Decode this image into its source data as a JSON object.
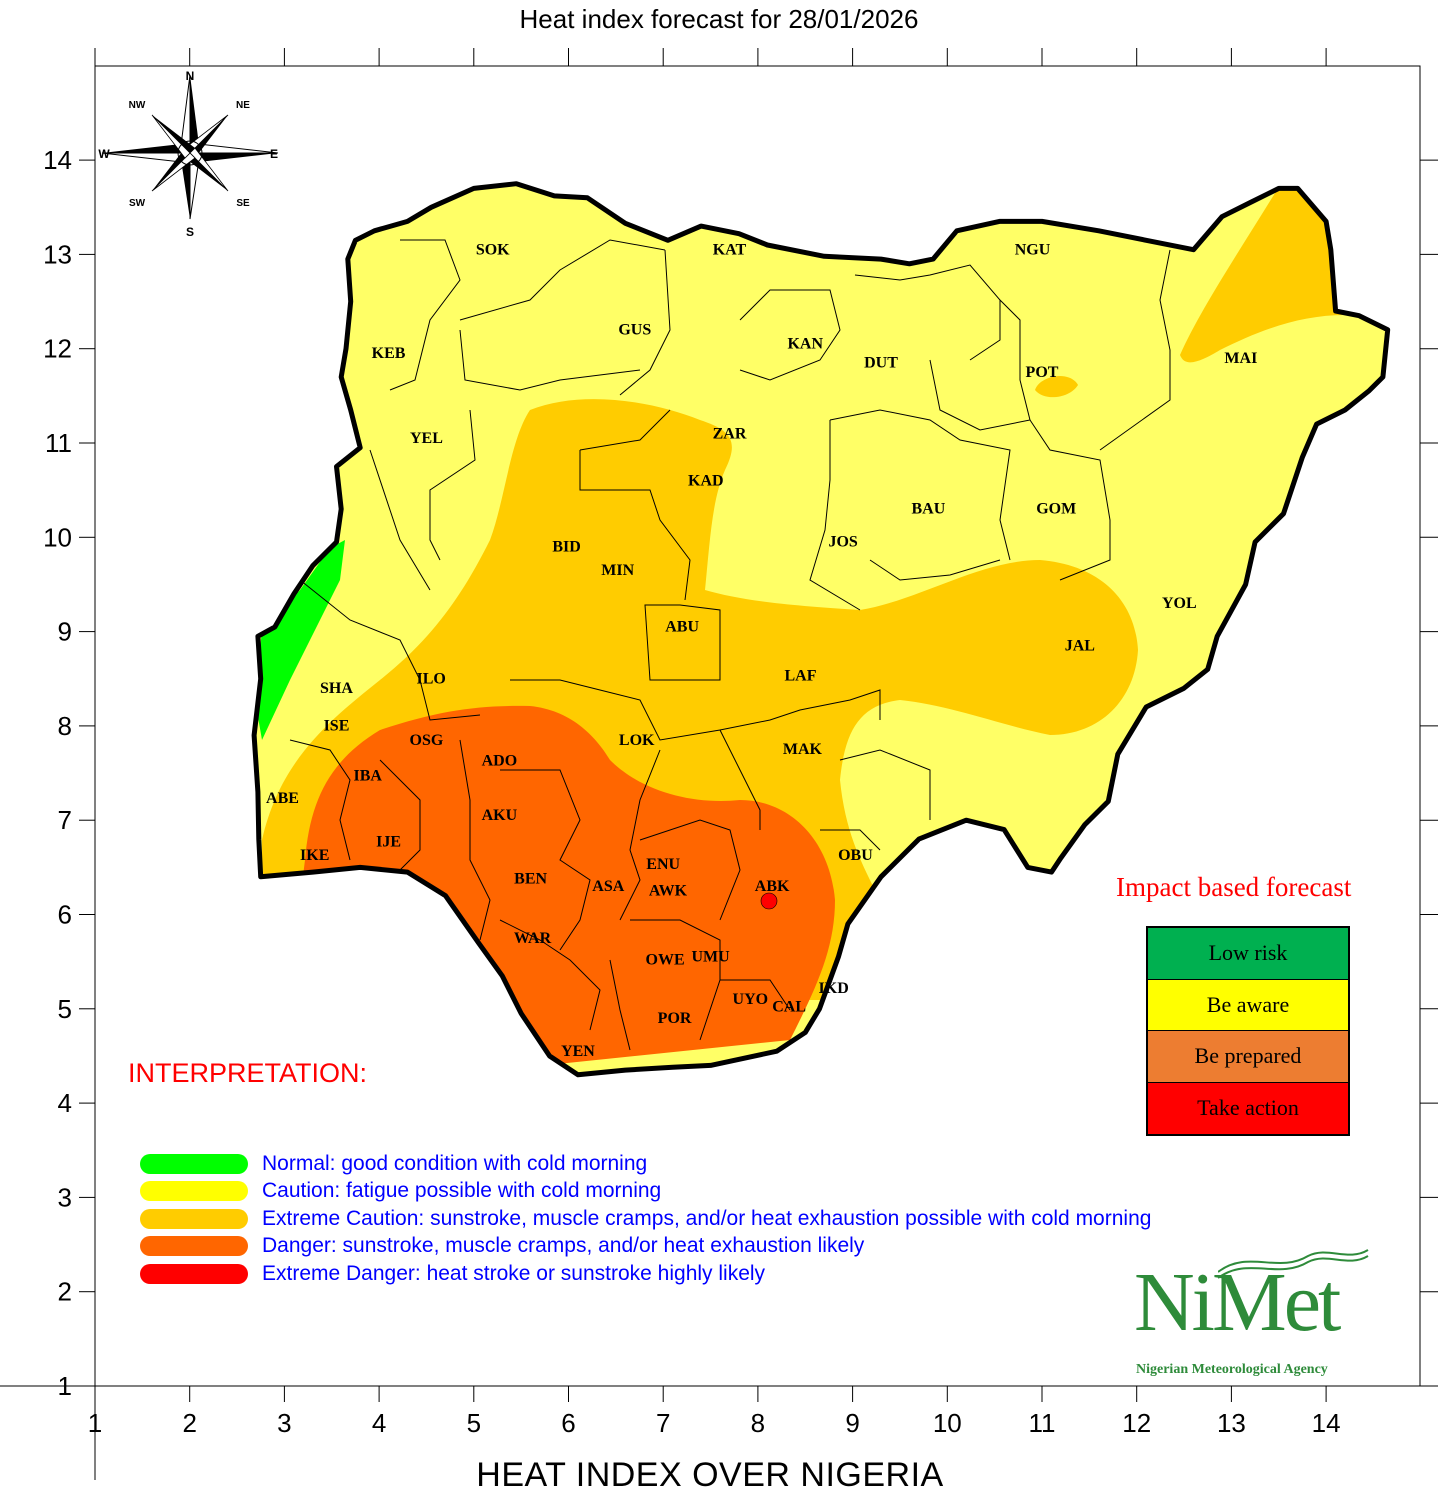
{
  "title": "Heat index forecast for 28/01/2026",
  "axis_title": "HEAT INDEX OVER NIGERIA",
  "axes": {
    "x_ticks": [
      "1",
      "2",
      "3",
      "4",
      "5",
      "6",
      "7",
      "8",
      "9",
      "10",
      "11",
      "12",
      "13",
      "14"
    ],
    "y_ticks": [
      "1",
      "2",
      "3",
      "4",
      "5",
      "6",
      "7",
      "8",
      "9",
      "10",
      "11",
      "12",
      "13",
      "14"
    ],
    "xlim": [
      1,
      15
    ],
    "ylim": [
      1,
      15
    ]
  },
  "compass": {
    "labels": [
      "N",
      "NE",
      "E",
      "SE",
      "S",
      "SW",
      "W",
      "NW"
    ]
  },
  "map_labels": [
    {
      "code": "SOK",
      "lon": 5.2,
      "lat": 13.0
    },
    {
      "code": "KAT",
      "lon": 7.7,
      "lat": 13.0
    },
    {
      "code": "NGU",
      "lon": 10.9,
      "lat": 13.0
    },
    {
      "code": "KEB",
      "lon": 4.1,
      "lat": 11.9
    },
    {
      "code": "GUS",
      "lon": 6.7,
      "lat": 12.15
    },
    {
      "code": "KAN",
      "lon": 8.5,
      "lat": 12.0
    },
    {
      "code": "DUT",
      "lon": 9.3,
      "lat": 11.8
    },
    {
      "code": "POT",
      "lon": 11.0,
      "lat": 11.7
    },
    {
      "code": "MAI",
      "lon": 13.1,
      "lat": 11.85
    },
    {
      "code": "YEL",
      "lon": 4.5,
      "lat": 11.0
    },
    {
      "code": "ZAR",
      "lon": 7.7,
      "lat": 11.05
    },
    {
      "code": "KAD",
      "lon": 7.45,
      "lat": 10.55
    },
    {
      "code": "BAU",
      "lon": 9.8,
      "lat": 10.25
    },
    {
      "code": "GOM",
      "lon": 11.15,
      "lat": 10.25
    },
    {
      "code": "BID",
      "lon": 5.98,
      "lat": 9.85
    },
    {
      "code": "JOS",
      "lon": 8.9,
      "lat": 9.9
    },
    {
      "code": "MIN",
      "lon": 6.52,
      "lat": 9.6
    },
    {
      "code": "YOL",
      "lon": 12.45,
      "lat": 9.25
    },
    {
      "code": "ABU",
      "lon": 7.2,
      "lat": 9.0
    },
    {
      "code": "JAL",
      "lon": 11.4,
      "lat": 8.8
    },
    {
      "code": "SHA",
      "lon": 3.55,
      "lat": 8.35
    },
    {
      "code": "ILO",
      "lon": 4.55,
      "lat": 8.45
    },
    {
      "code": "LAF",
      "lon": 8.45,
      "lat": 8.48
    },
    {
      "code": "ISE",
      "lon": 3.55,
      "lat": 7.95
    },
    {
      "code": "OSG",
      "lon": 4.5,
      "lat": 7.8
    },
    {
      "code": "LOK",
      "lon": 6.72,
      "lat": 7.8
    },
    {
      "code": "MAK",
      "lon": 8.47,
      "lat": 7.7
    },
    {
      "code": "ADO",
      "lon": 5.27,
      "lat": 7.58
    },
    {
      "code": "IBA",
      "lon": 3.88,
      "lat": 7.42
    },
    {
      "code": "ABE",
      "lon": 2.98,
      "lat": 7.18
    },
    {
      "code": "AKU",
      "lon": 5.27,
      "lat": 7.0
    },
    {
      "code": "IJE",
      "lon": 4.1,
      "lat": 6.72
    },
    {
      "code": "IKE",
      "lon": 3.32,
      "lat": 6.58
    },
    {
      "code": "OBU",
      "lon": 9.03,
      "lat": 6.58
    },
    {
      "code": "ENU",
      "lon": 7.0,
      "lat": 6.48
    },
    {
      "code": "BEN",
      "lon": 5.6,
      "lat": 6.33
    },
    {
      "code": "ASA",
      "lon": 6.42,
      "lat": 6.25
    },
    {
      "code": "AWK",
      "lon": 7.05,
      "lat": 6.2
    },
    {
      "code": "ABK",
      "lon": 8.15,
      "lat": 6.25
    },
    {
      "code": "WAR",
      "lon": 5.62,
      "lat": 5.7
    },
    {
      "code": "OWE",
      "lon": 7.02,
      "lat": 5.47
    },
    {
      "code": "UMU",
      "lon": 7.5,
      "lat": 5.5
    },
    {
      "code": "IKD",
      "lon": 8.8,
      "lat": 5.17
    },
    {
      "code": "UYO",
      "lon": 7.92,
      "lat": 5.05
    },
    {
      "code": "CAL",
      "lon": 8.33,
      "lat": 4.97
    },
    {
      "code": "POR",
      "lon": 7.12,
      "lat": 4.85
    },
    {
      "code": "YEN",
      "lon": 6.1,
      "lat": 4.5
    }
  ],
  "colors": {
    "normal": "#00ff00",
    "caution": "#ffff66",
    "extreme_caution": "#ffcc00",
    "danger": "#ff6600",
    "extreme_danger": "#ff0000",
    "boundary": "#000000"
  },
  "interpretation": {
    "heading": "INTERPRETATION:",
    "items": [
      {
        "color": "#00ff00",
        "text": "Normal: good condition with cold morning"
      },
      {
        "color": "#ffff00",
        "text": "Caution: fatigue possible  with cold morning"
      },
      {
        "color": "#ffcc00",
        "text": "Extreme Caution: sunstroke, muscle cramps, and/or heat exhaustion possible  with cold morning"
      },
      {
        "color": "#ff6600",
        "text": "Danger: sunstroke, muscle cramps, and/or heat exhaustion likely"
      },
      {
        "color": "#ff0000",
        "text": "Extreme Danger: heat stroke or sunstroke highly likely"
      }
    ]
  },
  "impact": {
    "title": "Impact based forecast",
    "rows": [
      {
        "label": "Low risk",
        "color": "#00b050"
      },
      {
        "label": "Be aware",
        "color": "#ffff00"
      },
      {
        "label": "Be prepared",
        "color": "#ed7d31"
      },
      {
        "label": "Take action",
        "color": "#ff0000"
      }
    ]
  },
  "logo": {
    "name": "NiMet",
    "subtitle": "Nigerian Meteorological Agency"
  }
}
